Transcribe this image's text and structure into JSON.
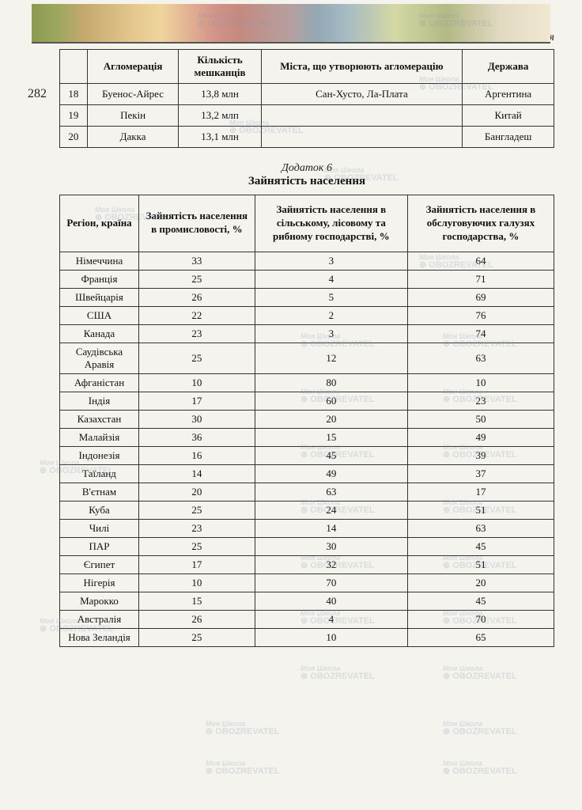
{
  "page_number": "282",
  "continuation_label": "Продовження",
  "table1": {
    "headers": {
      "aglomeration": "Агломерація",
      "population": "Кількість мешканців",
      "cities": "Міста, що утворюють агломерацію",
      "state": "Держава"
    },
    "rows": [
      {
        "num": "18",
        "aglom": "Буенос-Айрес",
        "pop": "13,8 млн",
        "cities": "Сан-Хусто, Ла-Плата",
        "state": "Аргентина"
      },
      {
        "num": "19",
        "aglom": "Пекін",
        "pop": "13,2 млп",
        "cities": "",
        "state": "Китай"
      },
      {
        "num": "20",
        "aglom": "Дакка",
        "pop": "13,1 млн",
        "cities": "",
        "state": "Бангладеш"
      }
    ]
  },
  "appendix": {
    "title": "Додаток 6",
    "subtitle": "Зайнятість населення"
  },
  "table2": {
    "headers": {
      "region": "Регіон, країна",
      "industry": "Зайнятість населення в промисловості, %",
      "agriculture": "Зайнятість населення в сільському, лісовому та рибному господарстві, %",
      "services": "Зайнятість населення в обслуговуючих галузях господарства, %"
    },
    "rows": [
      {
        "region": "Німеччина",
        "industry": "33",
        "agriculture": "3",
        "services": "64"
      },
      {
        "region": "Франція",
        "industry": "25",
        "agriculture": "4",
        "services": "71"
      },
      {
        "region": "Швейцарія",
        "industry": "26",
        "agriculture": "5",
        "services": "69"
      },
      {
        "region": "США",
        "industry": "22",
        "agriculture": "2",
        "services": "76"
      },
      {
        "region": "Канада",
        "industry": "23",
        "agriculture": "3",
        "services": "74"
      },
      {
        "region": "Саудівська Аравія",
        "industry": "25",
        "agriculture": "12",
        "services": "63"
      },
      {
        "region": "Афганістан",
        "industry": "10",
        "agriculture": "80",
        "services": "10"
      },
      {
        "region": "Індія",
        "industry": "17",
        "agriculture": "60",
        "services": "23"
      },
      {
        "region": "Казахстан",
        "industry": "30",
        "agriculture": "20",
        "services": "50"
      },
      {
        "region": "Малайзія",
        "industry": "36",
        "agriculture": "15",
        "services": "49"
      },
      {
        "region": "Індонезія",
        "industry": "16",
        "agriculture": "45",
        "services": "39"
      },
      {
        "region": "Таїланд",
        "industry": "14",
        "agriculture": "49",
        "services": "37"
      },
      {
        "region": "В'єтнам",
        "industry": "20",
        "agriculture": "63",
        "services": "17"
      },
      {
        "region": "Куба",
        "industry": "25",
        "agriculture": "24",
        "services": "51"
      },
      {
        "region": "Чилі",
        "industry": "23",
        "agriculture": "14",
        "services": "63"
      },
      {
        "region": "ПАР",
        "industry": "25",
        "agriculture": "30",
        "services": "45"
      },
      {
        "region": "Єгипет",
        "industry": "17",
        "agriculture": "32",
        "services": "51"
      },
      {
        "region": "Нігерія",
        "industry": "10",
        "agriculture": "70",
        "services": "20"
      },
      {
        "region": "Марокко",
        "industry": "15",
        "agriculture": "40",
        "services": "45"
      },
      {
        "region": "Австралія",
        "industry": "26",
        "agriculture": "4",
        "services": "70"
      },
      {
        "region": "Нова Зеландія",
        "industry": "25",
        "agriculture": "10",
        "services": "65"
      }
    ]
  },
  "watermark": {
    "school": "Моя Школа",
    "obs": "⊕ OBOZREVATEL"
  }
}
